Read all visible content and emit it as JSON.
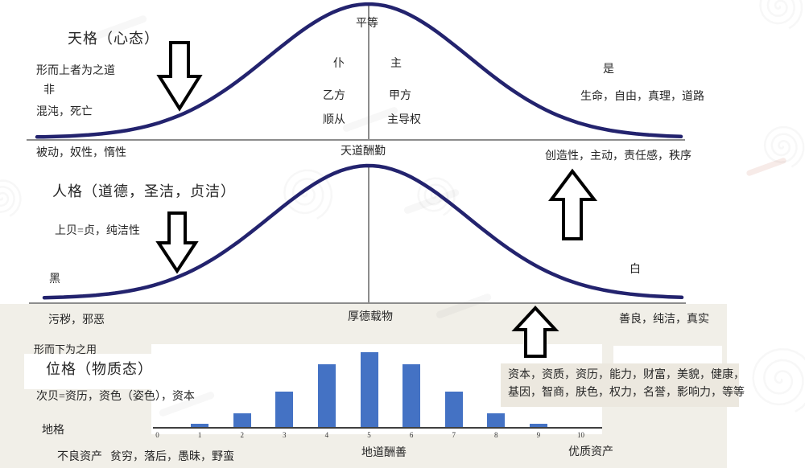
{
  "sections": {
    "heaven": {
      "title": "天格（心态）",
      "left_philosophy": "形而上者为之道",
      "left_no": "非",
      "left_desc": "混沌，死亡",
      "below_axis_left": "被动，奴性，惰性",
      "peak_label": "平等",
      "center_left": [
        "仆",
        "乙方",
        "顺从"
      ],
      "center_right": [
        "主",
        "甲方",
        "主导权"
      ],
      "axis_label": "天道酬勤",
      "right_yes": "是",
      "right_desc": "生命，自由，真理，道路",
      "below_axis_right": "创造性，主动，责任感，秩序"
    },
    "human": {
      "title": "人格（道德，圣洁，贞洁）",
      "left_sub": "上贝=贞，纯洁性",
      "left_pole": "黑",
      "below_axis_left": "污秽，邪恶",
      "axis_label": "厚德载物",
      "right_pole": "白",
      "below_axis_right": "善良，纯洁，真实"
    },
    "material": {
      "upper_label": "形而下为之用",
      "title": "位格（物质态）",
      "sub_label": "次贝=资历，资色（姿色），资本",
      "left_label": "地格",
      "bottom_left_1": "不良资产",
      "bottom_left_2": "贫穷，落后，愚昧，野蛮",
      "bottom_right": "优质资产",
      "right_line1": "资本，资质，资历，能力，财富，美貌，健康，",
      "right_line2": "基因，智商，肤色，权力，名誉，影响力，等等"
    }
  },
  "chart_data": {
    "type": "bar",
    "categories": [
      "0",
      "1",
      "2",
      "3",
      "4",
      "5",
      "6",
      "7",
      "8",
      "9",
      "10"
    ],
    "values": [
      0,
      1.0,
      4.4,
      11.7,
      20.5,
      24.6,
      20.5,
      11.7,
      4.4,
      1.0,
      0
    ],
    "title": "",
    "xlabel": "地道酬善",
    "ylabel": "",
    "ylim": [
      0,
      25
    ],
    "grid": false,
    "legend": "none"
  },
  "colors": {
    "curve": "#23236e",
    "bar": "#4472c4",
    "axis_gray": "#8c8c8c",
    "chart_axis": "#3f3f3f",
    "arrow_outline": "#000000",
    "band_background": "#f1efe8"
  }
}
